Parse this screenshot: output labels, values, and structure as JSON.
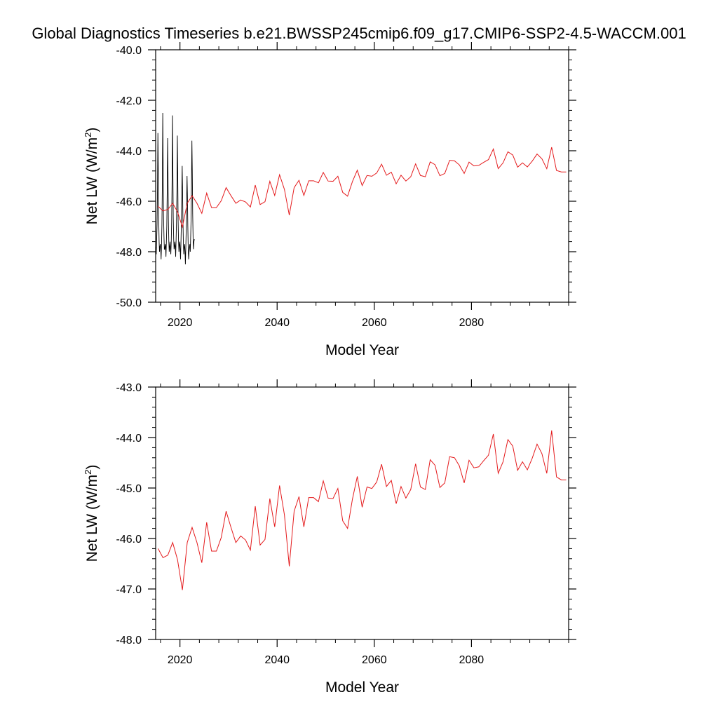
{
  "title": "Global Diagnostics Timeseries b.e21.BWSSP245cmip6.f09_g17.CMIP6-SSP2-4.5-WACCM.001",
  "colors": {
    "monthly": "#000000",
    "annual": "#e41a1c",
    "axis": "#000000"
  },
  "chart_data": [
    {
      "type": "line",
      "title": "",
      "xlabel": "Model Year",
      "ylabel": "Net LW (W/m",
      "ylabel_sup": "2",
      "ylabel_close": ")",
      "xlim": [
        2015,
        2100
      ],
      "ylim": [
        -50,
        -40
      ],
      "xticks": [
        2020,
        2040,
        2060,
        2080
      ],
      "xtick_labels": [
        "2020",
        "2040",
        "2060",
        "2080"
      ],
      "yticks": [
        -50,
        -48,
        -46,
        -44,
        -42,
        -40
      ],
      "ytick_labels": [
        "-50.0",
        "-48.0",
        "-46.0",
        "-44.0",
        "-42.0",
        "-40.0"
      ],
      "grid": false,
      "series": [
        {
          "kind": "monthly",
          "color": "#000000",
          "x": [
            2015.04,
            2015.12,
            2015.21,
            2015.29,
            2015.38,
            2015.46,
            2015.54,
            2015.62,
            2015.71,
            2015.79,
            2015.88,
            2015.96,
            2016.04,
            2016.12,
            2016.21,
            2016.29,
            2016.38,
            2016.46,
            2016.54,
            2016.62,
            2016.71,
            2016.79,
            2016.88,
            2016.96,
            2017.04,
            2017.12,
            2017.21,
            2017.29,
            2017.38,
            2017.46,
            2017.54,
            2017.62,
            2017.71,
            2017.79,
            2017.88,
            2017.96,
            2018.04,
            2018.12,
            2018.21,
            2018.29,
            2018.38,
            2018.46,
            2018.54,
            2018.62,
            2018.71,
            2018.79,
            2018.88,
            2018.96,
            2019.04,
            2019.12,
            2019.21,
            2019.29,
            2019.38,
            2019.46,
            2019.54,
            2019.62,
            2019.71,
            2019.79,
            2019.88,
            2019.96,
            2020.04,
            2020.12,
            2020.21,
            2020.29,
            2020.38,
            2020.46,
            2020.54,
            2020.62,
            2020.71,
            2020.79,
            2020.88,
            2020.96,
            2021.04,
            2021.12,
            2021.21,
            2021.29,
            2021.38,
            2021.46,
            2021.54,
            2021.62,
            2021.71,
            2021.79,
            2021.88,
            2021.96,
            2022.04,
            2022.12,
            2022.21,
            2022.29,
            2022.38,
            2022.46,
            2022.54,
            2022.62,
            2022.71,
            2022.79,
            2022.88,
            2022.96
          ],
          "y": [
            -47.8,
            -48.1,
            -47.5,
            -46.9,
            -45.5,
            -43.3,
            -44.8,
            -46.6,
            -47.6,
            -48.0,
            -47.8,
            -47.7,
            -47.9,
            -48.3,
            -47.7,
            -46.9,
            -45.3,
            -42.5,
            -44.6,
            -46.5,
            -47.4,
            -47.9,
            -47.9,
            -47.7,
            -47.8,
            -48.2,
            -47.6,
            -47.0,
            -45.6,
            -43.5,
            -44.9,
            -46.7,
            -47.6,
            -48.0,
            -47.8,
            -47.6,
            -47.9,
            -48.1,
            -47.6,
            -46.8,
            -45.2,
            -42.6,
            -44.7,
            -46.6,
            -47.5,
            -47.9,
            -47.8,
            -47.6,
            -47.8,
            -48.2,
            -47.5,
            -46.8,
            -45.6,
            -43.4,
            -44.9,
            -46.7,
            -47.6,
            -48.0,
            -47.7,
            -47.6,
            -47.9,
            -48.3,
            -47.6,
            -46.9,
            -45.7,
            -44.6,
            -45.6,
            -46.8,
            -47.7,
            -48.1,
            -47.8,
            -47.7,
            -48.0,
            -48.5,
            -47.8,
            -47.1,
            -46.0,
            -45.0,
            -45.8,
            -47.0,
            -47.9,
            -48.3,
            -48.0,
            -47.8,
            -47.7,
            -48.0,
            -47.4,
            -46.7,
            -45.3,
            -43.6,
            -44.8,
            -46.5,
            -47.5,
            -47.9,
            -47.6,
            -47.5
          ]
        },
        {
          "kind": "annual",
          "color": "#e41a1c",
          "x": [
            2015.5,
            2016.5,
            2017.5,
            2018.5,
            2019.5,
            2020.5,
            2021.5,
            2022.5,
            2023.5,
            2024.5,
            2025.5,
            2026.5,
            2027.5,
            2028.5,
            2029.5,
            2030.5,
            2031.5,
            2032.5,
            2033.5,
            2034.5,
            2035.5,
            2036.5,
            2037.5,
            2038.5,
            2039.5,
            2040.5,
            2041.5,
            2042.5,
            2043.5,
            2044.5,
            2045.5,
            2046.5,
            2047.5,
            2048.5,
            2049.5,
            2050.5,
            2051.5,
            2052.5,
            2053.5,
            2054.5,
            2055.5,
            2056.5,
            2057.5,
            2058.5,
            2059.5,
            2060.5,
            2061.5,
            2062.5,
            2063.5,
            2064.5,
            2065.5,
            2066.5,
            2067.5,
            2068.5,
            2069.5,
            2070.5,
            2071.5,
            2072.5,
            2073.5,
            2074.5,
            2075.5,
            2076.5,
            2077.5,
            2078.5,
            2079.5,
            2080.5,
            2081.5,
            2082.5,
            2083.5,
            2084.5,
            2085.5,
            2086.5,
            2087.5,
            2088.5,
            2089.5,
            2090.5,
            2091.5,
            2092.5,
            2093.5,
            2094.5,
            2095.5,
            2096.5,
            2097.5,
            2098.5,
            2099.5
          ],
          "y": [
            -46.2,
            -46.38,
            -46.33,
            -46.08,
            -46.42,
            -47.02,
            -46.08,
            -45.78,
            -46.08,
            -46.48,
            -45.68,
            -46.25,
            -46.25,
            -45.98,
            -45.46,
            -45.78,
            -46.08,
            -45.95,
            -46.03,
            -46.23,
            -45.36,
            -46.13,
            -46.02,
            -45.21,
            -45.77,
            -44.95,
            -45.53,
            -46.55,
            -45.46,
            -45.17,
            -45.77,
            -45.19,
            -45.19,
            -45.27,
            -44.86,
            -45.2,
            -45.21,
            -45.01,
            -45.65,
            -45.8,
            -45.22,
            -44.77,
            -45.38,
            -44.98,
            -45.01,
            -44.88,
            -44.53,
            -44.97,
            -44.85,
            -45.31,
            -44.97,
            -45.2,
            -45.03,
            -44.52,
            -44.98,
            -45.03,
            -44.44,
            -44.55,
            -44.99,
            -44.9,
            -44.38,
            -44.4,
            -44.56,
            -44.9,
            -44.45,
            -44.6,
            -44.58,
            -44.46,
            -44.35,
            -43.93,
            -44.71,
            -44.48,
            -44.04,
            -44.17,
            -44.65,
            -44.48,
            -44.64,
            -44.41,
            -44.13,
            -44.32,
            -44.71,
            -43.86,
            -44.78,
            -44.84,
            -44.84
          ]
        }
      ]
    },
    {
      "type": "line",
      "title": "",
      "xlabel": "Model Year",
      "ylabel": "Net LW (W/m",
      "ylabel_sup": "2",
      "ylabel_close": ")",
      "xlim": [
        2015,
        2100
      ],
      "ylim": [
        -48,
        -43
      ],
      "xticks": [
        2020,
        2040,
        2060,
        2080
      ],
      "xtick_labels": [
        "2020",
        "2040",
        "2060",
        "2080"
      ],
      "yticks": [
        -48,
        -47,
        -46,
        -45,
        -44,
        -43
      ],
      "ytick_labels": [
        "-48.0",
        "-47.0",
        "-46.0",
        "-45.0",
        "-44.0",
        "-43.0"
      ],
      "grid": false,
      "series": [
        {
          "kind": "annual",
          "color": "#e41a1c",
          "x": [
            2015.5,
            2016.5,
            2017.5,
            2018.5,
            2019.5,
            2020.5,
            2021.5,
            2022.5,
            2023.5,
            2024.5,
            2025.5,
            2026.5,
            2027.5,
            2028.5,
            2029.5,
            2030.5,
            2031.5,
            2032.5,
            2033.5,
            2034.5,
            2035.5,
            2036.5,
            2037.5,
            2038.5,
            2039.5,
            2040.5,
            2041.5,
            2042.5,
            2043.5,
            2044.5,
            2045.5,
            2046.5,
            2047.5,
            2048.5,
            2049.5,
            2050.5,
            2051.5,
            2052.5,
            2053.5,
            2054.5,
            2055.5,
            2056.5,
            2057.5,
            2058.5,
            2059.5,
            2060.5,
            2061.5,
            2062.5,
            2063.5,
            2064.5,
            2065.5,
            2066.5,
            2067.5,
            2068.5,
            2069.5,
            2070.5,
            2071.5,
            2072.5,
            2073.5,
            2074.5,
            2075.5,
            2076.5,
            2077.5,
            2078.5,
            2079.5,
            2080.5,
            2081.5,
            2082.5,
            2083.5,
            2084.5,
            2085.5,
            2086.5,
            2087.5,
            2088.5,
            2089.5,
            2090.5,
            2091.5,
            2092.5,
            2093.5,
            2094.5,
            2095.5,
            2096.5,
            2097.5,
            2098.5,
            2099.5
          ],
          "y": [
            -46.2,
            -46.38,
            -46.33,
            -46.08,
            -46.42,
            -47.02,
            -46.08,
            -45.78,
            -46.08,
            -46.48,
            -45.68,
            -46.25,
            -46.25,
            -45.98,
            -45.46,
            -45.78,
            -46.08,
            -45.95,
            -46.03,
            -46.23,
            -45.36,
            -46.13,
            -46.02,
            -45.21,
            -45.77,
            -44.95,
            -45.53,
            -46.55,
            -45.46,
            -45.17,
            -45.77,
            -45.19,
            -45.19,
            -45.27,
            -44.86,
            -45.2,
            -45.21,
            -45.01,
            -45.65,
            -45.8,
            -45.22,
            -44.77,
            -45.38,
            -44.98,
            -45.01,
            -44.88,
            -44.53,
            -44.97,
            -44.85,
            -45.31,
            -44.97,
            -45.2,
            -45.03,
            -44.52,
            -44.98,
            -45.03,
            -44.44,
            -44.55,
            -44.99,
            -44.9,
            -44.38,
            -44.4,
            -44.56,
            -44.9,
            -44.45,
            -44.6,
            -44.58,
            -44.46,
            -44.35,
            -43.93,
            -44.71,
            -44.48,
            -44.04,
            -44.17,
            -44.65,
            -44.48,
            -44.64,
            -44.41,
            -44.13,
            -44.32,
            -44.71,
            -43.86,
            -44.78,
            -44.84,
            -44.84
          ]
        }
      ]
    }
  ]
}
